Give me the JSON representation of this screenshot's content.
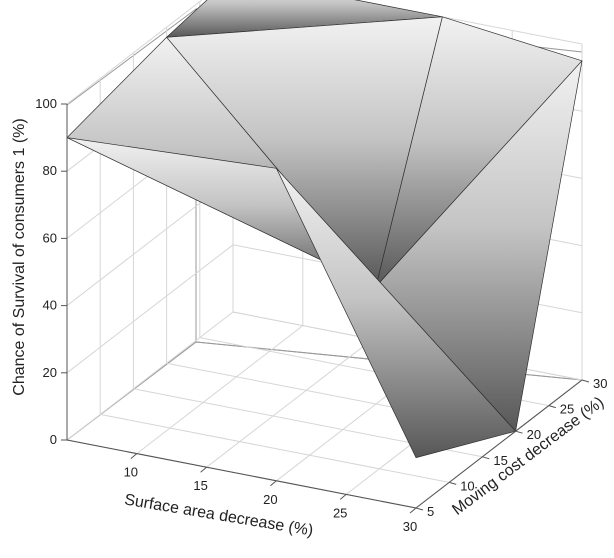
{
  "chart_data": {
    "type": "surface3d",
    "x": {
      "label": "Surface area decrease (%)",
      "ticks": [
        "10",
        "15",
        "20",
        "25",
        "30"
      ],
      "values": [
        5,
        20,
        30
      ]
    },
    "y": {
      "label": "Moving cost decrease (%)",
      "ticks": [
        "5",
        "10",
        "15",
        "20",
        "25",
        "30"
      ],
      "values": [
        5,
        20,
        30
      ]
    },
    "z": {
      "label": "Chance of Survival of consumers 1 (%)",
      "ticks": [
        "0",
        "20",
        "40",
        "60",
        "80",
        "100"
      ],
      "range": [
        0,
        100
      ]
    },
    "surface_z": [
      [
        90,
        97,
        100
      ],
      [
        93,
        35,
        100
      ],
      [
        15,
        0,
        95
      ]
    ],
    "grid": true,
    "colormap": "gray"
  }
}
